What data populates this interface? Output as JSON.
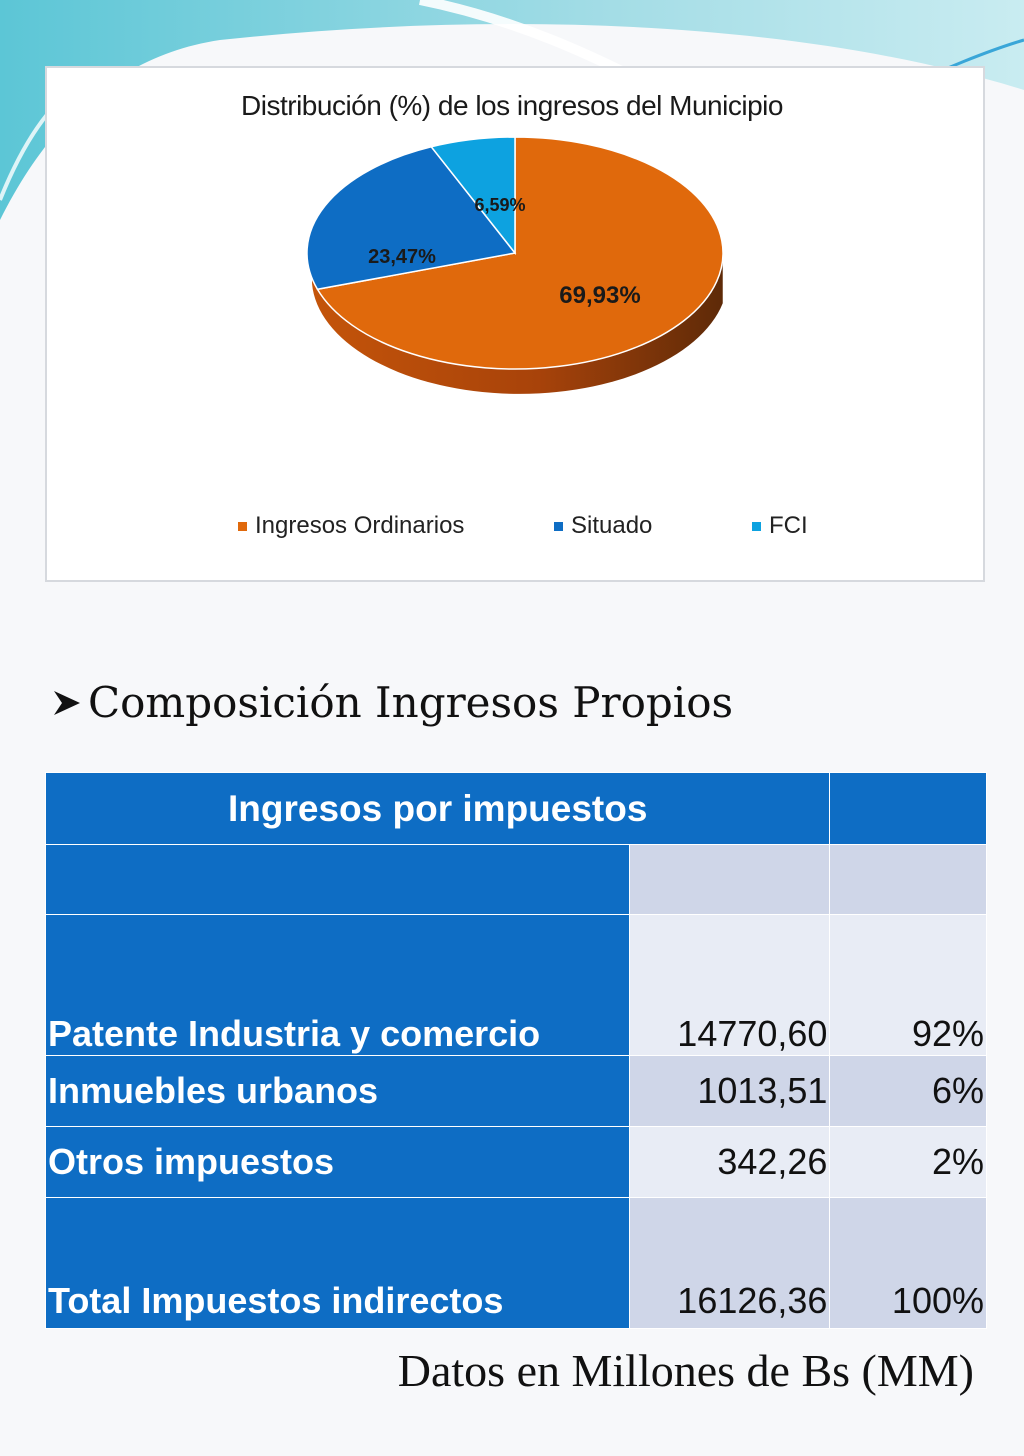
{
  "chart_data": {
    "type": "pie",
    "title": "Distribución (%) de los ingresos del Municipio",
    "series": [
      {
        "name": "Ingresos Ordinarios",
        "value": 69.93,
        "label": "69,93%",
        "color": "#e0690c"
      },
      {
        "name": "Situado",
        "value": 23.47,
        "label": "23,47%",
        "color": "#0e6dc4"
      },
      {
        "name": "FCI",
        "value": 6.59,
        "label": "6,59%",
        "color": "#0da2e0"
      }
    ],
    "legend_position": "bottom"
  },
  "section": {
    "heading": "Composición Ingresos Propios"
  },
  "table": {
    "header": "Ingresos por impuestos",
    "rows": [
      {
        "label": "Patente Industria y comercio",
        "amount": "14770,60",
        "pct": "92%"
      },
      {
        "label": "Inmuebles urbanos",
        "amount": "1013,51",
        "pct": "6%"
      },
      {
        "label": "Otros impuestos",
        "amount": "342,26",
        "pct": "2%"
      },
      {
        "label": "Total Impuestos indirectos",
        "amount": "16126,36",
        "pct": "100%"
      }
    ]
  },
  "footnote": "Datos en Millones de Bs (MM)",
  "colors": {
    "table_blue": "#0e6dc4",
    "table_shade_dark": "#cfd6e8",
    "table_shade_light": "#e8ecf5"
  }
}
